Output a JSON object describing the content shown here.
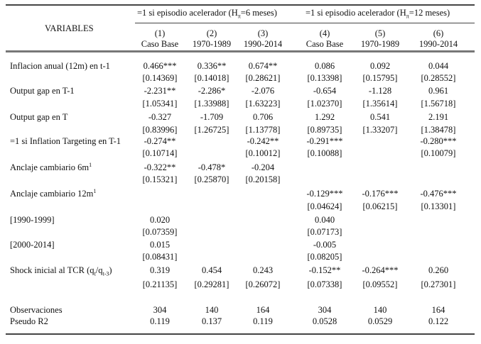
{
  "header": {
    "variables_label": "VARIABLES",
    "groups": [
      {
        "prefix": "=1 si episodio acelerador (H",
        "sub": "π",
        "suffix": "=6 meses)"
      },
      {
        "prefix": "=1 si episodio acelerador (H",
        "sub": "π",
        "suffix": "=12 meses)"
      }
    ],
    "columns": [
      {
        "num": "(1)",
        "label": "Caso Base"
      },
      {
        "num": "(2)",
        "label": "1970-1989"
      },
      {
        "num": "(3)",
        "label": "1990-2014"
      },
      {
        "num": "(4)",
        "label": "Caso Base"
      },
      {
        "num": "(5)",
        "label": "1970-1989"
      },
      {
        "num": "(6)",
        "label": "1990-2014"
      }
    ]
  },
  "rows": [
    {
      "label": [
        {
          "t": "Inflacion anual (12m) en t-1"
        }
      ],
      "coef": [
        "0.466***",
        "0.336**",
        "0.674**",
        "0.086",
        "0.092",
        "0.044"
      ],
      "se": [
        "[0.14369]",
        "[0.14018]",
        "[0.28621]",
        "[0.13398]",
        "[0.15795]",
        "[0.28552]"
      ]
    },
    {
      "label": [
        {
          "t": "Output gap en T-1"
        }
      ],
      "coef": [
        "-2.231**",
        "-2.286*",
        "-2.076",
        "-0.654",
        "-1.128",
        "0.961"
      ],
      "se": [
        "[1.05341]",
        "[1.33988]",
        "[1.63223]",
        "[1.02370]",
        "[1.35614]",
        "[1.56718]"
      ]
    },
    {
      "label": [
        {
          "t": "Output gap en T"
        }
      ],
      "coef": [
        "-0.327",
        "-1.709",
        "0.706",
        "1.292",
        "0.541",
        "2.191"
      ],
      "se": [
        "[0.83996]",
        "[1.26725]",
        "[1.13778]",
        "[0.89735]",
        "[1.33207]",
        "[1.38478]"
      ]
    },
    {
      "label": [
        {
          "t": "=1 si Inflation Targeting en T-1"
        }
      ],
      "coef": [
        "-0.274**",
        "",
        "-0.242**",
        "-0.291***",
        "",
        "-0.280***"
      ],
      "se": [
        "[0.10714]",
        "",
        "[0.10012]",
        "[0.10088]",
        "",
        "[0.10079]"
      ]
    },
    {
      "label": [
        {
          "t": "Anclaje cambiario 6m"
        },
        {
          "sup": "1"
        }
      ],
      "coef": [
        "-0.322**",
        "-0.478*",
        "-0.204",
        "",
        "",
        ""
      ],
      "se": [
        "[0.15321]",
        "[0.25870]",
        "[0.20158]",
        "",
        "",
        ""
      ]
    },
    {
      "label": [
        {
          "t": "Anclaje cambiario 12m"
        },
        {
          "sup": "1"
        }
      ],
      "coef": [
        "",
        "",
        "",
        "-0.129***",
        "-0.176***",
        "-0.476***"
      ],
      "se": [
        "",
        "",
        "",
        "[0.04624]",
        "[0.06215]",
        "[0.13301]"
      ]
    },
    {
      "label": [
        {
          "t": "[1990-1999]"
        }
      ],
      "coef": [
        "0.020",
        "",
        "",
        "0.040",
        "",
        ""
      ],
      "se": [
        "[0.07359]",
        "",
        "",
        "[0.07173]",
        "",
        ""
      ]
    },
    {
      "label": [
        {
          "t": "[2000-2014]"
        }
      ],
      "coef": [
        "0.015",
        "",
        "",
        "-0.005",
        "",
        ""
      ],
      "se": [
        "[0.08431]",
        "",
        "",
        "[0.08205]",
        "",
        ""
      ]
    },
    {
      "label": [
        {
          "t": "Shock inicial al TCR (q"
        },
        {
          "sub": "t"
        },
        {
          "t": "/q"
        },
        {
          "sub": "t-3"
        },
        {
          "t": ")"
        }
      ],
      "coef": [
        "0.319",
        "0.454",
        "0.243",
        "-0.152**",
        "-0.264***",
        "0.260"
      ],
      "se": [
        "[0.21135]",
        "[0.29281]",
        "[0.26072]",
        "[0.07338]",
        "[0.09552]",
        "[0.27301]"
      ]
    }
  ],
  "stats": [
    {
      "label": "Observaciones",
      "values": [
        "304",
        "140",
        "164",
        "304",
        "140",
        "164"
      ]
    },
    {
      "label": "Pseudo R2",
      "values": [
        "0.119",
        "0.137",
        "0.119",
        "0.0528",
        "0.0529",
        "0.122"
      ]
    }
  ]
}
